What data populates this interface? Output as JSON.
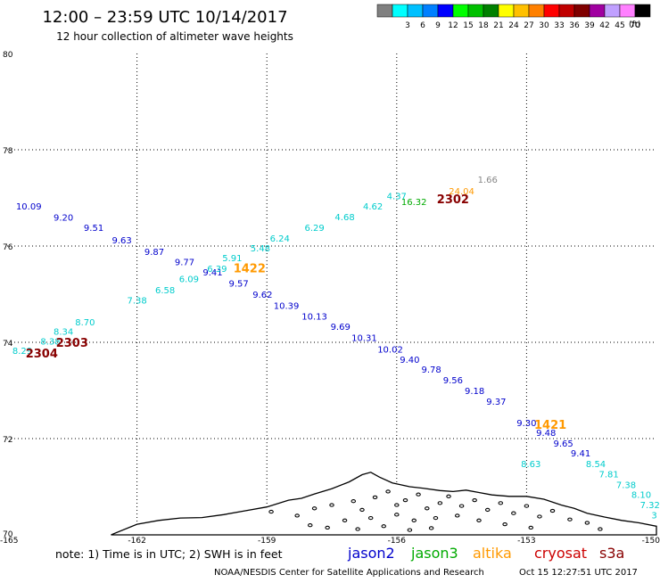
{
  "header": {
    "title": "12:00 – 23:59 UTC 10/14/2017",
    "subtitle": "12 hour collection of altimeter wave heights"
  },
  "colorbar": {
    "unit": "(ft)",
    "bins": [
      {
        "label": "",
        "color": "#808080"
      },
      {
        "label": "3",
        "color": "#00ffff"
      },
      {
        "label": "6",
        "color": "#00c0ff"
      },
      {
        "label": "9",
        "color": "#0080ff"
      },
      {
        "label": "12",
        "color": "#0000ff"
      },
      {
        "label": "15",
        "color": "#00ff00"
      },
      {
        "label": "18",
        "color": "#00c000"
      },
      {
        "label": "21",
        "color": "#008000"
      },
      {
        "label": "24",
        "color": "#ffff00"
      },
      {
        "label": "27",
        "color": "#ffc000"
      },
      {
        "label": "30",
        "color": "#ff8000"
      },
      {
        "label": "33",
        "color": "#ff0000"
      },
      {
        "label": "36",
        "color": "#c00000"
      },
      {
        "label": "39",
        "color": "#800000"
      },
      {
        "label": "42",
        "color": "#a000a0"
      },
      {
        "label": "45",
        "color": "#c0a0ff"
      },
      {
        "label": "70",
        "color": "#ff80ff"
      },
      {
        "label": "",
        "color": "#000000"
      }
    ]
  },
  "footer": {
    "note": "note:  1) Time is in UTC;  2) SWH is in feet",
    "credit": "NOAA/NESDIS Center for Satellite Applications and Research",
    "timestamp": "Oct 15 12:27:51 UTC 2017",
    "satellites": [
      {
        "name": "jason2",
        "color": "#0000cc"
      },
      {
        "name": "jason3",
        "color": "#00aa00"
      },
      {
        "name": "altika",
        "color": "#ff9900"
      },
      {
        "name": "cryosat",
        "color": "#cc0000"
      },
      {
        "name": "s3a",
        "color": "#880000"
      }
    ]
  },
  "chart_data": {
    "type": "scatter",
    "title": "12:00 – 23:59 UTC 10/14/2017",
    "subtitle": "12 hour collection of altimeter wave heights",
    "xlabel": "",
    "ylabel": "",
    "xlim": [
      -165,
      -150
    ],
    "ylim": [
      70,
      80
    ],
    "x_ticks": [
      {
        "value": -165,
        "label": "-165"
      },
      {
        "value": -162,
        "label": "-162"
      },
      {
        "value": -159,
        "label": "-159"
      },
      {
        "value": -156,
        "label": "-156"
      },
      {
        "value": -153,
        "label": "-153"
      },
      {
        "value": -150,
        "label": "-150"
      }
    ],
    "y_ticks": [
      {
        "value": 70,
        "label": "70"
      },
      {
        "value": 72,
        "label": "72"
      },
      {
        "value": 74,
        "label": "74"
      },
      {
        "value": 76,
        "label": "76"
      },
      {
        "value": 78,
        "label": "78"
      },
      {
        "value": 80,
        "label": "80"
      }
    ],
    "grid": true,
    "series": [
      {
        "name": "jason2",
        "color": "#0000cc",
        "points": [
          {
            "x": -164.5,
            "y": 76.83,
            "label": "10.09"
          },
          {
            "x": -163.7,
            "y": 76.6,
            "label": "9.20"
          },
          {
            "x": -163.0,
            "y": 76.39,
            "label": "9.51"
          },
          {
            "x": -162.35,
            "y": 76.13,
            "label": "9.63"
          },
          {
            "x": -161.6,
            "y": 75.89,
            "label": "9.87"
          },
          {
            "x": -160.9,
            "y": 75.68,
            "label": "9.77"
          },
          {
            "x": -160.25,
            "y": 75.46,
            "label": "9.41"
          },
          {
            "x": -159.65,
            "y": 75.23,
            "label": "9.57"
          },
          {
            "x": -159.1,
            "y": 75.0,
            "label": "9.62"
          },
          {
            "x": -158.55,
            "y": 74.77,
            "label": "10.39"
          },
          {
            "x": -157.9,
            "y": 74.55,
            "label": "10.13"
          },
          {
            "x": -157.3,
            "y": 74.33,
            "label": "9.69"
          },
          {
            "x": -156.75,
            "y": 74.1,
            "label": "10.31"
          },
          {
            "x": -156.15,
            "y": 73.86,
            "label": "10.02"
          },
          {
            "x": -155.7,
            "y": 73.65,
            "label": "9.40"
          },
          {
            "x": -155.2,
            "y": 73.44,
            "label": "9.78"
          },
          {
            "x": -154.7,
            "y": 73.22,
            "label": "9.56"
          },
          {
            "x": -154.2,
            "y": 73.0,
            "label": "9.18"
          },
          {
            "x": -153.7,
            "y": 72.78,
            "label": "9.37"
          },
          {
            "x": -153.0,
            "y": 72.33,
            "label": "9.30"
          },
          {
            "x": -152.55,
            "y": 72.13,
            "label": "9.48"
          },
          {
            "x": -152.15,
            "y": 71.91,
            "label": "9.65"
          },
          {
            "x": -151.75,
            "y": 71.7,
            "label": "9.41"
          }
        ]
      },
      {
        "name": "jason3",
        "color": "#00aa00",
        "points": [
          {
            "x": -155.6,
            "y": 76.93,
            "label": "16.32"
          }
        ]
      },
      {
        "name": "altika",
        "color": "#ff9900",
        "points": [
          {
            "x": -154.5,
            "y": 77.15,
            "label": "24.04"
          }
        ]
      },
      {
        "name": "cryosat",
        "color": "#cc0000",
        "points": []
      },
      {
        "name": "s3a",
        "color": "#880000",
        "points": []
      },
      {
        "name": "",
        "color": "#00cccc",
        "points": [
          {
            "x": -164.65,
            "y": 73.83,
            "label": "8.29"
          },
          {
            "x": -164.0,
            "y": 74.03,
            "label": "8.38"
          },
          {
            "x": -163.7,
            "y": 74.23,
            "label": "8.34"
          },
          {
            "x": -163.2,
            "y": 74.43,
            "label": "8.70"
          },
          {
            "x": -162.0,
            "y": 74.88,
            "label": "7.38"
          },
          {
            "x": -161.35,
            "y": 75.09,
            "label": "6.58"
          },
          {
            "x": -160.8,
            "y": 75.32,
            "label": "6.09"
          },
          {
            "x": -160.15,
            "y": 75.54,
            "label": "6.39"
          },
          {
            "x": -159.8,
            "y": 75.76,
            "label": "5.91"
          },
          {
            "x": -159.15,
            "y": 75.96,
            "label": "5.48"
          },
          {
            "x": -158.7,
            "y": 76.17,
            "label": "6.24"
          },
          {
            "x": -157.9,
            "y": 76.39,
            "label": "6.29"
          },
          {
            "x": -157.2,
            "y": 76.61,
            "label": "4.68"
          },
          {
            "x": -156.55,
            "y": 76.83,
            "label": "4.62"
          },
          {
            "x": -156.0,
            "y": 77.05,
            "label": "4.37"
          },
          {
            "x": -152.9,
            "y": 71.48,
            "label": "8.63"
          },
          {
            "x": -151.4,
            "y": 71.48,
            "label": "8.54"
          },
          {
            "x": -151.1,
            "y": 71.27,
            "label": "7.81"
          },
          {
            "x": -150.7,
            "y": 71.05,
            "label": "7.38"
          },
          {
            "x": -150.35,
            "y": 70.84,
            "label": "8.10"
          },
          {
            "x": -150.15,
            "y": 70.63,
            "label": "7.32"
          },
          {
            "x": -150.05,
            "y": 70.42,
            "label": "3"
          }
        ]
      },
      {
        "name": "",
        "color": "#888888",
        "points": [
          {
            "x": -153.9,
            "y": 77.39,
            "label": "1.66"
          }
        ]
      }
    ],
    "time_labels": [
      {
        "x": -159.4,
        "y": 75.55,
        "label": "1422",
        "color": "#ff9900"
      },
      {
        "x": -152.45,
        "y": 72.3,
        "label": "1421",
        "color": "#ff9900"
      },
      {
        "x": -164.2,
        "y": 73.78,
        "label": "2304",
        "color": "#880000"
      },
      {
        "x": -163.5,
        "y": 74.0,
        "label": "2303",
        "color": "#880000"
      },
      {
        "x": -154.7,
        "y": 76.98,
        "label": "2302",
        "color": "#880000"
      }
    ],
    "coastline": {
      "fill": "#ffffff",
      "stroke": "#000000",
      "points": [
        [
          -162.6,
          70.0
        ],
        [
          -162.0,
          70.22
        ],
        [
          -161.5,
          70.3
        ],
        [
          -161.0,
          70.35
        ],
        [
          -160.5,
          70.36
        ],
        [
          -160.0,
          70.42
        ],
        [
          -159.5,
          70.5
        ],
        [
          -159.0,
          70.58
        ],
        [
          -158.5,
          70.72
        ],
        [
          -158.2,
          70.76
        ],
        [
          -157.9,
          70.85
        ],
        [
          -157.5,
          70.96
        ],
        [
          -157.1,
          71.1
        ],
        [
          -156.8,
          71.25
        ],
        [
          -156.6,
          71.3
        ],
        [
          -156.4,
          71.2
        ],
        [
          -156.1,
          71.08
        ],
        [
          -155.7,
          71.0
        ],
        [
          -155.4,
          70.97
        ],
        [
          -155.0,
          70.92
        ],
        [
          -154.7,
          70.9
        ],
        [
          -154.4,
          70.93
        ],
        [
          -154.1,
          70.88
        ],
        [
          -153.8,
          70.83
        ],
        [
          -153.4,
          70.8
        ],
        [
          -153.0,
          70.8
        ],
        [
          -152.6,
          70.74
        ],
        [
          -152.2,
          70.62
        ],
        [
          -151.9,
          70.55
        ],
        [
          -151.6,
          70.45
        ],
        [
          -151.2,
          70.37
        ],
        [
          -150.8,
          70.3
        ],
        [
          -150.4,
          70.25
        ],
        [
          -150.0,
          70.18
        ],
        [
          -150.0,
          70.0
        ]
      ],
      "dots": [
        [
          -158.9,
          70.48
        ],
        [
          -158.3,
          70.4
        ],
        [
          -157.9,
          70.55
        ],
        [
          -157.5,
          70.62
        ],
        [
          -157.0,
          70.7
        ],
        [
          -156.8,
          70.52
        ],
        [
          -156.5,
          70.78
        ],
        [
          -156.2,
          70.9
        ],
        [
          -156.0,
          70.62
        ],
        [
          -155.8,
          70.72
        ],
        [
          -155.5,
          70.84
        ],
        [
          -155.3,
          70.55
        ],
        [
          -155.0,
          70.66
        ],
        [
          -154.8,
          70.8
        ],
        [
          -154.5,
          70.6
        ],
        [
          -154.2,
          70.72
        ],
        [
          -153.9,
          70.52
        ],
        [
          -153.6,
          70.66
        ],
        [
          -153.3,
          70.45
        ],
        [
          -153.0,
          70.6
        ],
        [
          -152.7,
          70.38
        ],
        [
          -152.4,
          70.5
        ],
        [
          -152.0,
          70.32
        ],
        [
          -151.6,
          70.25
        ],
        [
          -151.3,
          70.12
        ],
        [
          -157.2,
          70.3
        ],
        [
          -156.6,
          70.35
        ],
        [
          -156.0,
          70.42
        ],
        [
          -155.6,
          70.3
        ],
        [
          -155.1,
          70.35
        ],
        [
          -154.6,
          70.4
        ],
        [
          -154.1,
          70.3
        ],
        [
          -153.5,
          70.22
        ],
        [
          -152.9,
          70.15
        ],
        [
          -158.0,
          70.2
        ],
        [
          -157.6,
          70.15
        ],
        [
          -156.9,
          70.12
        ],
        [
          -156.3,
          70.18
        ],
        [
          -155.7,
          70.1
        ],
        [
          -155.2,
          70.14
        ]
      ]
    }
  }
}
